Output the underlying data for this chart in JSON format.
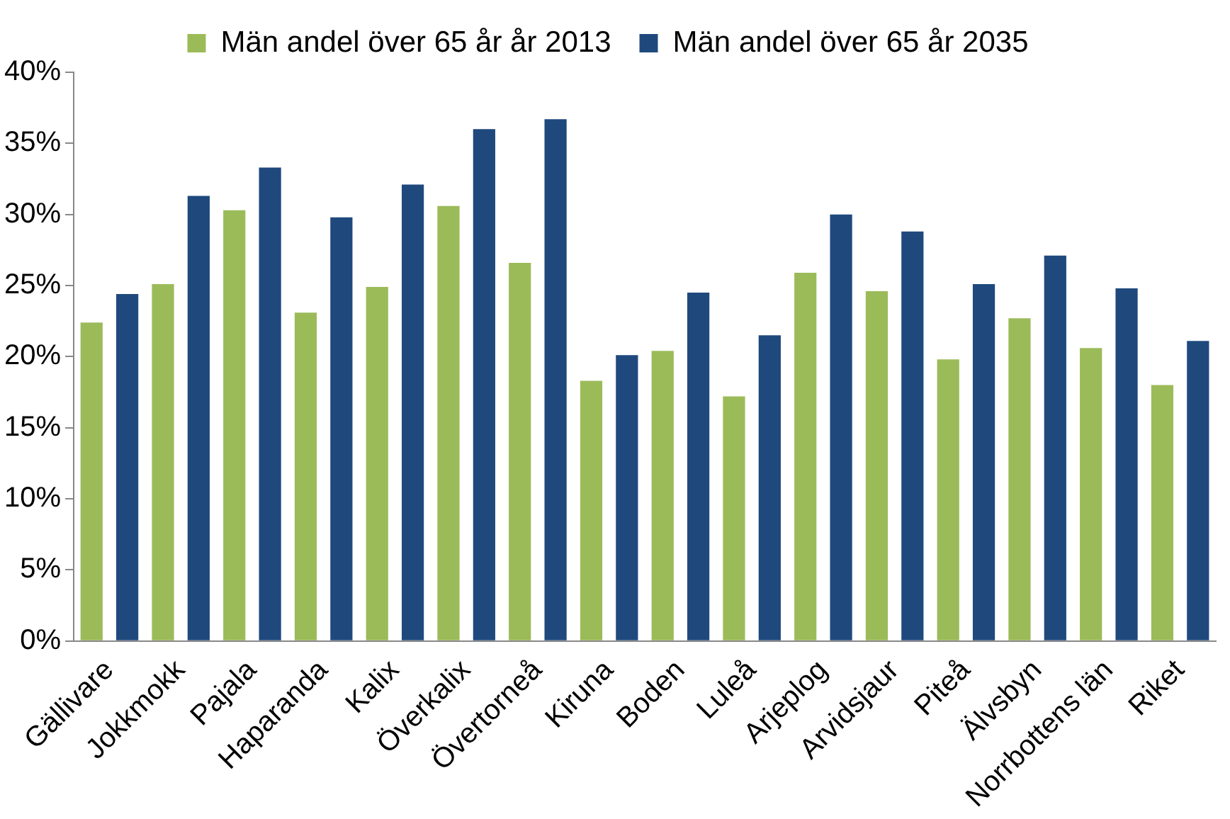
{
  "chart_data": {
    "type": "bar",
    "categories": [
      "Gällivare",
      "Jokkmokk",
      "Pajala",
      "Haparanda",
      "Kalix",
      "Överkalix",
      "Övertorneå",
      "Kiruna",
      "Boden",
      "Luleå",
      "Arjeplog",
      "Arvidsjaur",
      "Piteå",
      "Älvsbyn",
      "Norrbottens län",
      "Riket"
    ],
    "series": [
      {
        "name": "Män andel över 65 år år 2013",
        "color": "#9bbb59",
        "values": [
          22.4,
          25.1,
          30.3,
          23.1,
          24.9,
          30.6,
          26.6,
          18.3,
          20.4,
          17.2,
          25.9,
          24.6,
          19.8,
          22.7,
          20.6,
          18.0
        ]
      },
      {
        "name": "Män andel över 65 år 2035",
        "color": "#1f497d",
        "values": [
          24.4,
          31.3,
          33.3,
          29.8,
          32.1,
          36.0,
          36.7,
          20.1,
          24.5,
          21.5,
          30.0,
          28.8,
          25.1,
          27.1,
          24.8,
          21.1
        ]
      }
    ],
    "ylim": [
      0,
      40
    ],
    "yticks": [
      {
        "value": 0,
        "label": "0%"
      },
      {
        "value": 5,
        "label": "5%"
      },
      {
        "value": 10,
        "label": "10%"
      },
      {
        "value": 15,
        "label": "15%"
      },
      {
        "value": 20,
        "label": "20%"
      },
      {
        "value": 25,
        "label": "25%"
      },
      {
        "value": 30,
        "label": "30%"
      },
      {
        "value": 35,
        "label": "35%"
      },
      {
        "value": 40,
        "label": "40%"
      }
    ],
    "grid": false,
    "legend": "top"
  }
}
